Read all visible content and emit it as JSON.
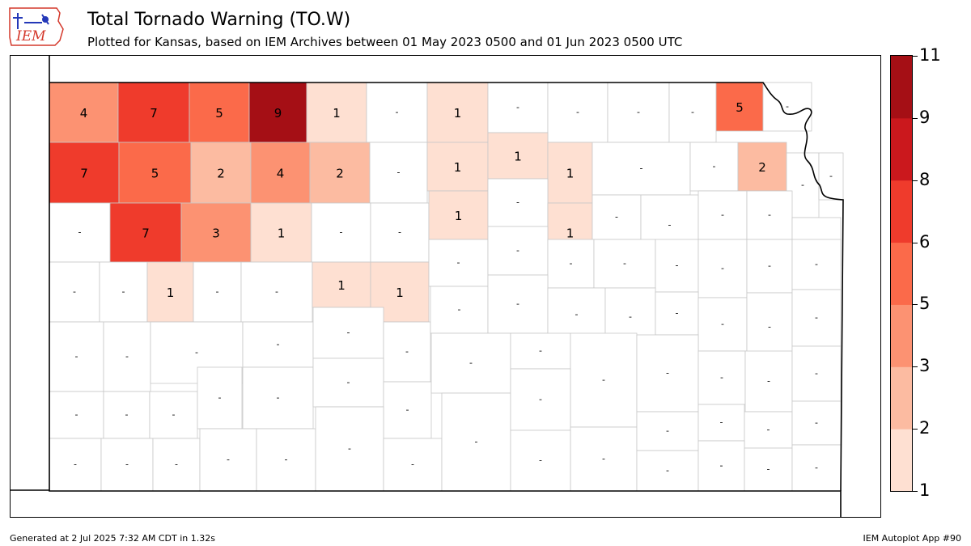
{
  "header": {
    "title": "Total Tornado Warning (TO.W)",
    "subtitle": "Plotted for Kansas, based on IEM Archives  between 01 May 2023 0500 and 01 Jun 2023 0500 UTC",
    "logo_text": "IEM"
  },
  "footer": {
    "generated": "Generated at 2 Jul 2025 7:32 AM CDT in 1.32s",
    "app": "IEM Autoplot App #90"
  },
  "legend": {
    "ticks": [
      "1",
      "2",
      "3",
      "5",
      "6",
      "8",
      "9",
      "11"
    ],
    "bin_colors": [
      "#fee0d2",
      "#fcbba1",
      "#fc9272",
      "#fb6a4a",
      "#ef3b2c",
      "#cb181d",
      "#a50f15"
    ]
  },
  "colors": {
    "bin_1_2": "#fee0d2",
    "bin_2_3": "#fcbba1",
    "bin_3_5": "#fc9272",
    "bin_5_6": "#fb6a4a",
    "bin_6_8": "#ef3b2c",
    "bin_8_9": "#cb181d",
    "bin_9_11": "#a50f15",
    "zero": "#ffffff",
    "county_border": "#c8c8c8",
    "state_border": "#000000"
  },
  "map": {
    "state": "Kansas",
    "empty_label": "-",
    "counties": [
      {
        "value": 4
      },
      {
        "value": 7
      },
      {
        "value": 5
      },
      {
        "value": 9
      },
      {
        "value": 1
      },
      {
        "value": 0
      },
      {
        "value": 1
      },
      {
        "value": 0
      },
      {
        "value": 0
      },
      {
        "value": 0
      },
      {
        "value": 0
      },
      {
        "value": 5
      },
      {
        "value": 0
      },
      {
        "value": 7
      },
      {
        "value": 5
      },
      {
        "value": 2
      },
      {
        "value": 4
      },
      {
        "value": 2
      },
      {
        "value": 0
      },
      {
        "value": 1
      },
      {
        "value": 1
      },
      {
        "value": 1
      },
      {
        "value": 0
      },
      {
        "value": 0
      },
      {
        "value": 2
      },
      {
        "value": 0
      },
      {
        "value": 0
      },
      {
        "value": 0
      },
      {
        "value": 7
      },
      {
        "value": 3
      },
      {
        "value": 1
      },
      {
        "value": 0
      },
      {
        "value": 0
      },
      {
        "value": 1
      },
      {
        "value": 0
      },
      {
        "value": 1
      },
      {
        "value": 0
      },
      {
        "value": 0
      },
      {
        "value": 0
      },
      {
        "value": 0
      },
      {
        "value": 0
      },
      {
        "value": 0
      },
      {
        "value": 0
      },
      {
        "value": 1
      },
      {
        "value": 0
      },
      {
        "value": 0
      },
      {
        "value": 1
      },
      {
        "value": 1
      },
      {
        "value": 0
      },
      {
        "value": 0
      },
      {
        "value": 0
      },
      {
        "value": 0
      },
      {
        "value": 0
      },
      {
        "value": 0
      },
      {
        "value": 0
      },
      {
        "value": 0
      },
      {
        "value": 0
      },
      {
        "value": 0
      },
      {
        "value": 0
      },
      {
        "value": 0
      },
      {
        "value": 0
      },
      {
        "value": 0
      },
      {
        "value": 0
      },
      {
        "value": 0
      },
      {
        "value": 0
      },
      {
        "value": 0
      },
      {
        "value": 0
      },
      {
        "value": 0
      },
      {
        "value": 0
      },
      {
        "value": 0
      },
      {
        "value": 0
      },
      {
        "value": 0
      },
      {
        "value": 0
      },
      {
        "value": 0
      },
      {
        "value": 0
      },
      {
        "value": 0
      },
      {
        "value": 0
      },
      {
        "value": 0
      },
      {
        "value": 0
      },
      {
        "value": 0
      },
      {
        "value": 0
      },
      {
        "value": 0
      },
      {
        "value": 0
      },
      {
        "value": 0
      },
      {
        "value": 0
      },
      {
        "value": 0
      },
      {
        "value": 0
      },
      {
        "value": 0
      },
      {
        "value": 0
      },
      {
        "value": 0
      },
      {
        "value": 0
      },
      {
        "value": 0
      },
      {
        "value": 0
      },
      {
        "value": 0
      },
      {
        "value": 0
      },
      {
        "value": 0
      },
      {
        "value": 0
      },
      {
        "value": 0
      },
      {
        "value": 0
      },
      {
        "value": 0
      },
      {
        "value": 0
      },
      {
        "value": 0
      },
      {
        "value": 0
      },
      {
        "value": 0
      },
      {
        "value": 0
      },
      {
        "value": 0
      },
      {
        "value": 0
      }
    ]
  }
}
